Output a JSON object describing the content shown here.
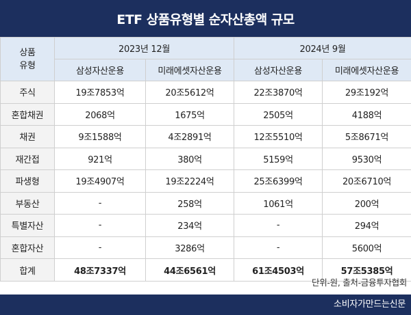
{
  "title": "ETF 상품유형별 순자산총액 규모",
  "header": {
    "type_col": "상품\n유형",
    "periods": [
      "2023년 12월",
      "2024년 9월"
    ],
    "companies": [
      "삼성자산운용",
      "미래에셋자산운용",
      "삼성자산운용",
      "미래에셋자산운용"
    ]
  },
  "rows": [
    {
      "category": "주식",
      "values": [
        "19조7853억",
        "20조5612억",
        "22조3870억",
        "29조192억"
      ]
    },
    {
      "category": "혼합채권",
      "values": [
        "2068억",
        "1675억",
        "2505억",
        "4188억"
      ]
    },
    {
      "category": "채권",
      "values": [
        "9조1588억",
        "4조2891억",
        "12조5510억",
        "5조8671억"
      ]
    },
    {
      "category": "재간접",
      "values": [
        "921억",
        "380억",
        "5159억",
        "9530억"
      ]
    },
    {
      "category": "파생형",
      "values": [
        "19조4907억",
        "19조2224억",
        "25조6399억",
        "20조6710억"
      ]
    },
    {
      "category": "부동산",
      "values": [
        "-",
        "258억",
        "1061억",
        "200억"
      ]
    },
    {
      "category": "특별자산",
      "values": [
        "-",
        "234억",
        "-",
        "294억"
      ]
    },
    {
      "category": "혼합자산",
      "values": [
        "-",
        "3286억",
        "-",
        "5600억"
      ]
    }
  ],
  "total": {
    "category": "합계",
    "values": [
      "48조7337억",
      "44조6561억",
      "61조4503억",
      "57조5385억"
    ]
  },
  "note": "단위-원, 출처-금융투자협회",
  "footer": "소비자가만드는신문"
}
